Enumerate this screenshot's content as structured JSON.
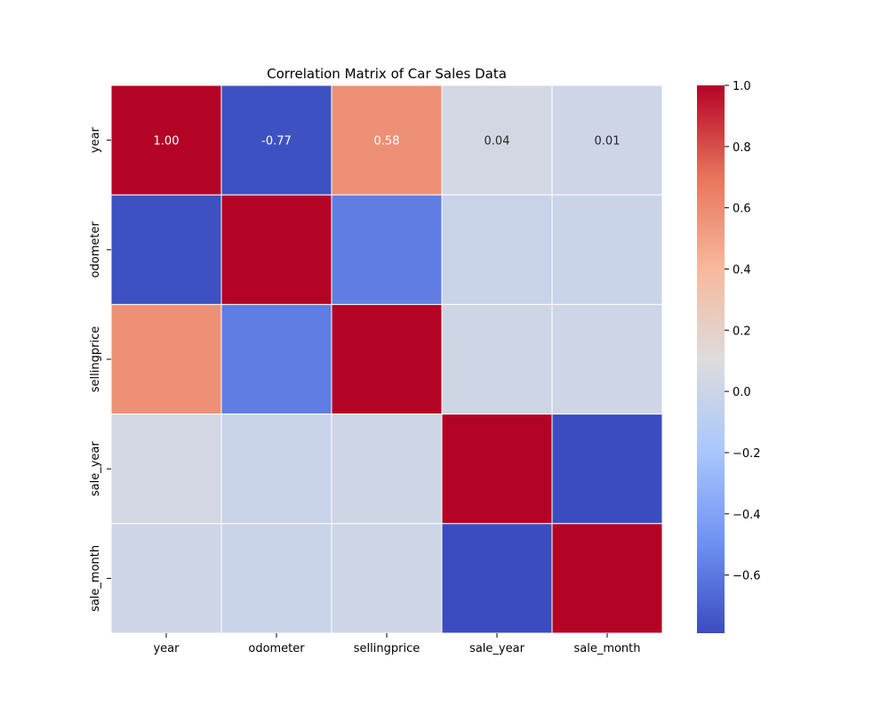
{
  "chart_data": {
    "type": "heatmap",
    "title": "Correlation Matrix of Car Sales Data",
    "xlabel": "",
    "ylabel": "",
    "x_categories": [
      "year",
      "odometer",
      "sellingprice",
      "sale_year",
      "sale_month"
    ],
    "y_categories": [
      "year",
      "odometer",
      "sellingprice",
      "sale_year",
      "sale_month"
    ],
    "values": [
      [
        1.0,
        -0.77,
        0.58,
        0.04,
        0.01
      ],
      [
        -0.77,
        1.0,
        -0.58,
        -0.02,
        -0.01
      ],
      [
        0.58,
        -0.58,
        1.0,
        0.02,
        0.01
      ],
      [
        0.04,
        -0.02,
        0.02,
        1.0,
        -0.79
      ],
      [
        0.01,
        -0.01,
        0.01,
        -0.79,
        1.0
      ]
    ],
    "annotated_row": 0,
    "annotation_labels": [
      "1.00",
      "-0.77",
      "0.58",
      "0.04",
      "0.01"
    ],
    "colormap": "coolwarm",
    "color_stops": [
      "#3b4cc0",
      "#6f92f3",
      "#aac7fd",
      "#dddcdc",
      "#f7b89c",
      "#e7745b",
      "#b40426"
    ],
    "vmin": -0.79,
    "vmax": 1.0,
    "colorbar_ticks": [
      "−0.6",
      "−0.4",
      "−0.2",
      "0.0",
      "0.2",
      "0.4",
      "0.6",
      "0.8",
      "1.0"
    ],
    "colorbar_tick_values": [
      -0.6,
      -0.4,
      -0.2,
      0.0,
      0.2,
      0.4,
      0.6,
      0.8,
      1.0
    ],
    "grid": false,
    "cell_borders": true,
    "cell_border_color": "#ffffff",
    "legend": "colorbar-right"
  }
}
